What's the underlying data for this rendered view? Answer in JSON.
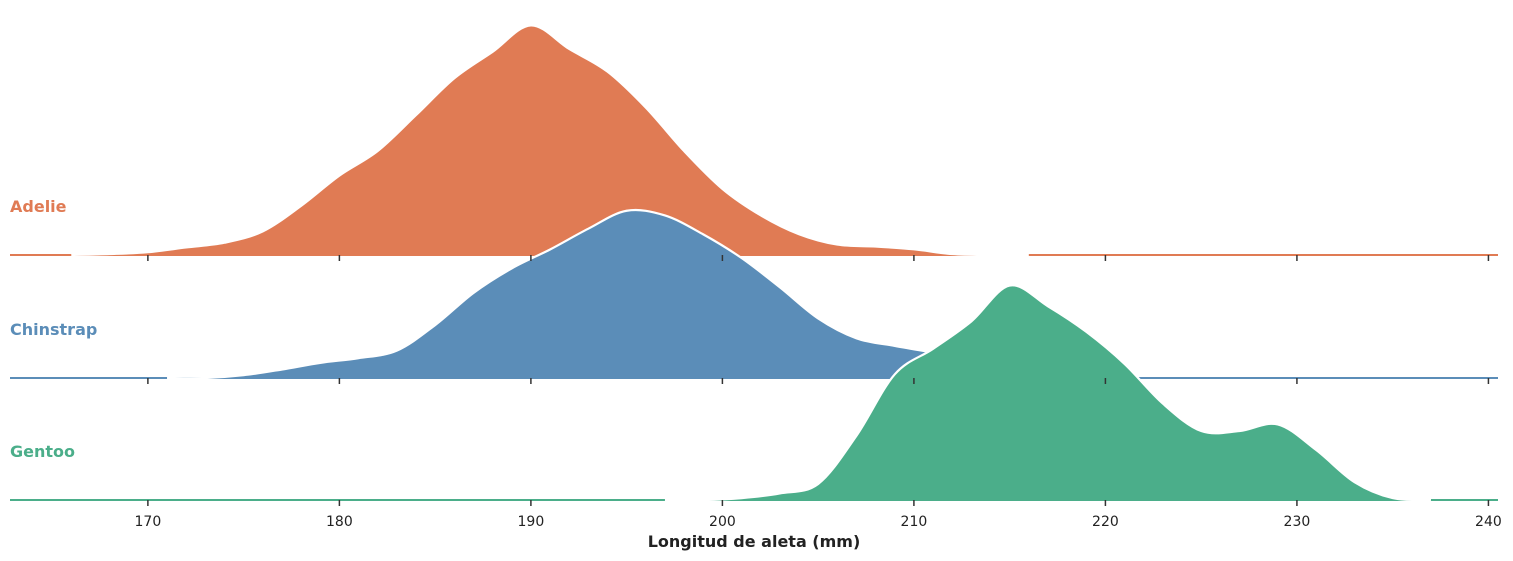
{
  "chart_data": {
    "type": "area",
    "subtype": "ridgeline",
    "title": "",
    "xlabel": "Longitud de aleta (mm)",
    "ylabel": "",
    "xlim": [
      162.8,
      240.5
    ],
    "xticks": [
      170,
      180,
      190,
      200,
      210,
      220,
      230,
      240
    ],
    "grid": false,
    "legend": "none",
    "ridge_outline_color": "#ffffff",
    "series": [
      {
        "name": "Adelie",
        "color": "#e07b54",
        "x": [
          166,
          168,
          170,
          172,
          174,
          176,
          178,
          180,
          182,
          184,
          186,
          188,
          190,
          192,
          194,
          196,
          198,
          200,
          202,
          204,
          206,
          208,
          210,
          212,
          214,
          216
        ],
        "density": [
          0.0,
          0.001,
          0.003,
          0.008,
          0.013,
          0.025,
          0.052,
          0.084,
          0.11,
          0.148,
          0.187,
          0.215,
          0.243,
          0.218,
          0.194,
          0.156,
          0.11,
          0.07,
          0.042,
          0.022,
          0.011,
          0.009,
          0.006,
          0.001,
          0.0,
          0.0
        ]
      },
      {
        "name": "Chinstrap",
        "color": "#5b8db8",
        "x": [
          171,
          173,
          175,
          177,
          179,
          181,
          183,
          185,
          187,
          189,
          191,
          193,
          195,
          197,
          199,
          201,
          203,
          205,
          207,
          209,
          211
        ],
        "density": [
          0.0,
          0.0,
          0.003,
          0.009,
          0.016,
          0.021,
          0.029,
          0.056,
          0.09,
          0.116,
          0.136,
          0.158,
          0.177,
          0.172,
          0.152,
          0.127,
          0.096,
          0.063,
          0.042,
          0.034,
          0.027
        ]
      },
      {
        "name": "Gentoo",
        "color": "#4bae8a",
        "x": [
          197,
          199,
          201,
          203,
          205,
          207,
          209,
          211,
          213,
          215,
          217,
          219,
          221,
          223,
          225,
          227,
          229,
          231,
          233,
          235,
          237
        ],
        "density": [
          0.0,
          0.0,
          0.002,
          0.007,
          0.017,
          0.068,
          0.133,
          0.16,
          0.189,
          0.227,
          0.205,
          0.178,
          0.144,
          0.102,
          0.073,
          0.073,
          0.08,
          0.053,
          0.019,
          0.002,
          0.0
        ]
      }
    ]
  }
}
